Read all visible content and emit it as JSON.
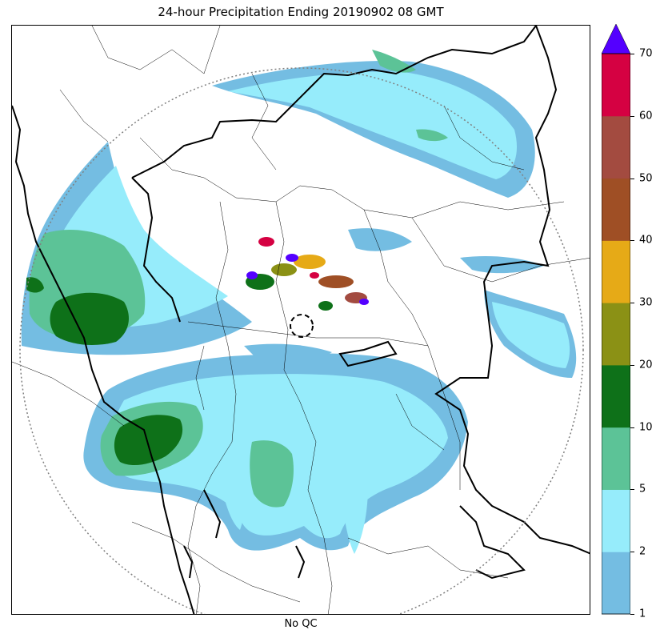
{
  "title": "24-hour Precipitation Ending 20190902 08 GMT",
  "caption": "No QC",
  "colorbar": {
    "ticks": [
      "1",
      "2",
      "5",
      "10",
      "20",
      "30",
      "40",
      "50",
      "60",
      "70"
    ],
    "colors": [
      "#74bde2",
      "#96ecfb",
      "#5cc397",
      "#0e7119",
      "#8b9115",
      "#e6aa17",
      "#9f4f25",
      "#a34b40",
      "#d50142"
    ],
    "extend_color": "#5400ff"
  },
  "map": {
    "range_ring_color": "#808080",
    "border_color": "#000000"
  }
}
